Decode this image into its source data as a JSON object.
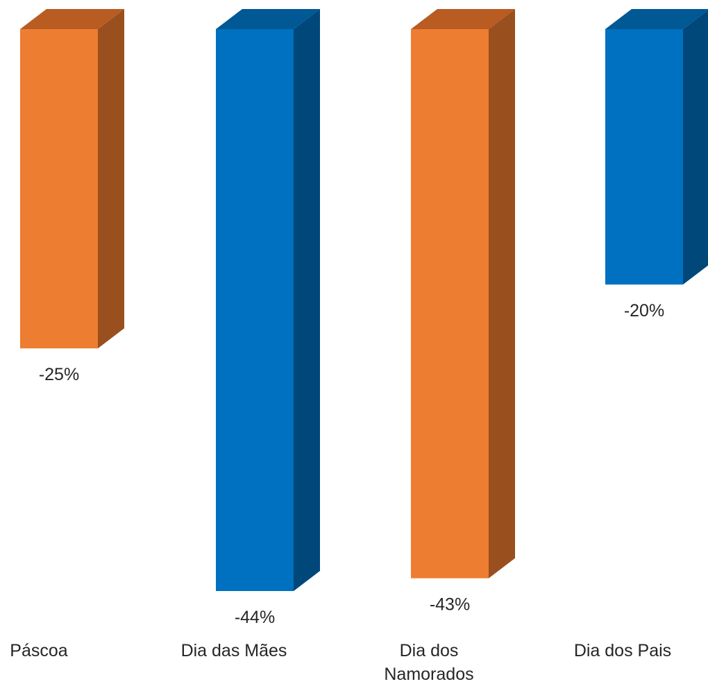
{
  "chart_data": {
    "type": "bar",
    "title": "",
    "xlabel": "",
    "ylabel": "",
    "categories": [
      "Páscoa",
      "Dia das Mães",
      "Dia dos Namorados",
      "Dia dos Pais"
    ],
    "values": [
      -25,
      -44,
      -43,
      -20
    ],
    "data_labels": [
      "-25%",
      "-44%",
      "-43%",
      "-20%"
    ],
    "ylim": [
      -44,
      0
    ],
    "grid": false,
    "legend": "none",
    "style": "3d-column",
    "colors": {
      "front": [
        "#ED7D31",
        "#0070C0",
        "#ED7D31",
        "#0070C0"
      ],
      "side": [
        "#9A4F1E",
        "#00477A",
        "#9A4F1E",
        "#00477A"
      ],
      "top": [
        "#B85C22",
        "#005894",
        "#B85C22",
        "#005894"
      ]
    }
  }
}
